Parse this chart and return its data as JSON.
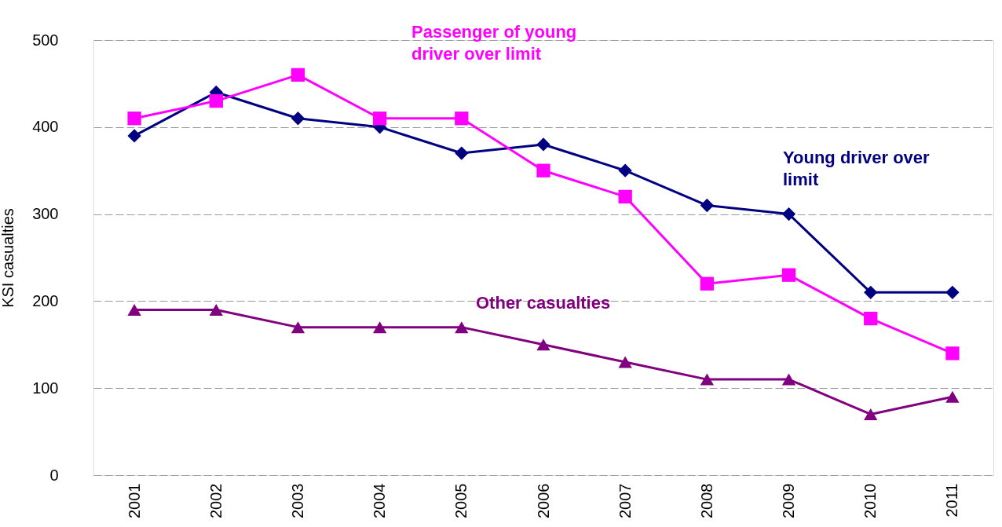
{
  "chart_data": {
    "type": "line",
    "ylabel": "KSI casualties",
    "categories": [
      "2001",
      "2002",
      "2003",
      "2004",
      "2005",
      "2006",
      "2007",
      "2008",
      "2009",
      "2010",
      "2011"
    ],
    "series": [
      {
        "name": "Young driver over limit",
        "color": "#000080",
        "marker": "diamond",
        "values": [
          390,
          440,
          410,
          400,
          370,
          380,
          350,
          310,
          300,
          210,
          210
        ]
      },
      {
        "name": "Passenger of young driver over limit",
        "color": "#ff00ff",
        "marker": "square",
        "values": [
          410,
          430,
          460,
          410,
          410,
          350,
          320,
          220,
          230,
          180,
          140
        ]
      },
      {
        "name": "Other casualties",
        "color": "#800080",
        "marker": "triangle",
        "values": [
          190,
          190,
          170,
          170,
          170,
          150,
          130,
          110,
          110,
          70,
          90
        ]
      }
    ],
    "ylim": [
      0,
      500
    ],
    "yticks": [
      0,
      100,
      200,
      300,
      400,
      500
    ],
    "grid": "y"
  }
}
